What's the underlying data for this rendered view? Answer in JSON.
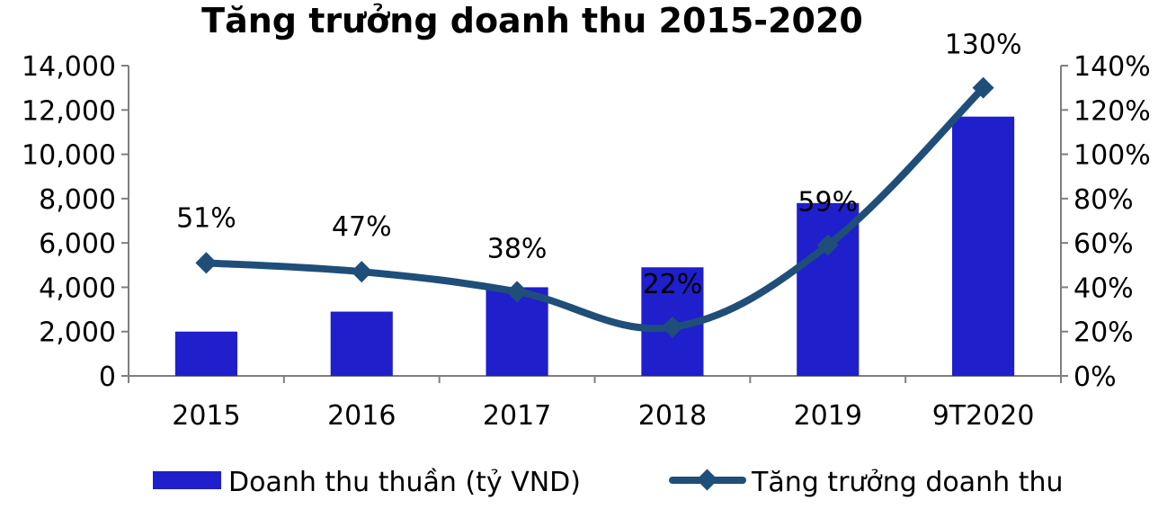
{
  "chart_data": {
    "type": "bar",
    "title": "Tăng trưởng doanh thu 2015-2020",
    "categories": [
      "2015",
      "2016",
      "2017",
      "2018",
      "2019",
      "9T2020"
    ],
    "series": [
      {
        "name": "Doanh thu thuần (tỷ VND)",
        "type": "bar",
        "axis": "left",
        "color": "#1f1fcc",
        "values": [
          2000,
          2900,
          4000,
          4900,
          7800,
          11700
        ]
      },
      {
        "name": "Tăng trưởng doanh thu",
        "type": "line",
        "axis": "right",
        "color": "#1f4e79",
        "marker": "diamond",
        "values": [
          51,
          47,
          38,
          22,
          59,
          130
        ],
        "labels": [
          "51%",
          "47%",
          "38%",
          "22%",
          "59%",
          "130%"
        ]
      }
    ],
    "y_left": {
      "min": 0,
      "max": 14000,
      "ticks": [
        "0",
        "2,000",
        "4,000",
        "6,000",
        "8,000",
        "10,000",
        "12,000",
        "14,000"
      ]
    },
    "y_right": {
      "min": 0,
      "max": 140,
      "ticks": [
        "0%",
        "20%",
        "40%",
        "60%",
        "80%",
        "100%",
        "120%",
        "140%"
      ]
    },
    "grid": false,
    "legend_position": "bottom"
  }
}
